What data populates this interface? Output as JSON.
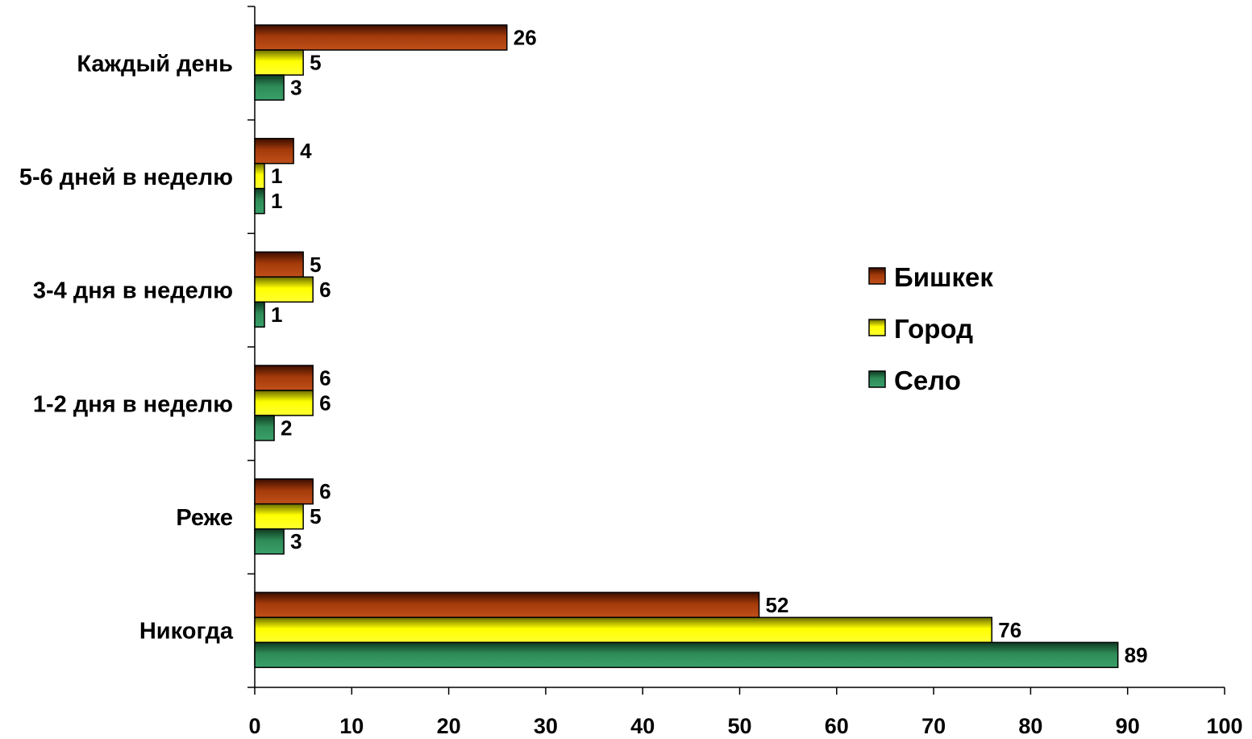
{
  "chart_data": {
    "type": "bar",
    "orientation": "horizontal",
    "categories": [
      "Каждый день",
      "5-6 дней в неделю",
      "3-4 дня в неделю",
      "1-2 дня в неделю",
      "Реже",
      "Никогда"
    ],
    "series": [
      {
        "name": "Бишкек",
        "values": [
          26,
          4,
          5,
          6,
          6,
          52
        ],
        "color": "#8B2500"
      },
      {
        "name": "Город",
        "values": [
          5,
          1,
          6,
          6,
          5,
          76
        ],
        "color": "#FFFF00"
      },
      {
        "name": "Село",
        "values": [
          3,
          1,
          1,
          2,
          3,
          89
        ],
        "color": "#2E8B57"
      }
    ],
    "xlim": [
      0,
      100
    ],
    "xticks": [
      0,
      10,
      20,
      30,
      40,
      50,
      60,
      70,
      80,
      90,
      100
    ],
    "grid": false,
    "legend_position": "right"
  }
}
